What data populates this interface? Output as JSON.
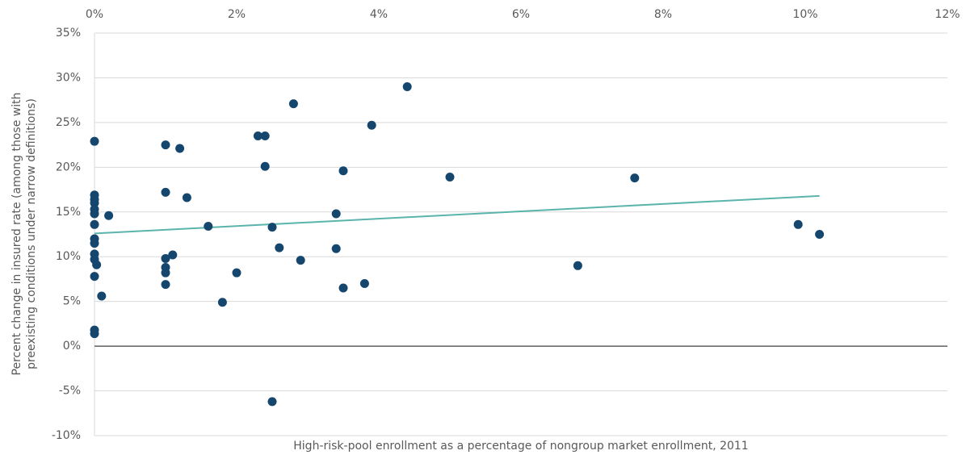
{
  "chart_data": {
    "type": "scatter",
    "xlabel": "High-risk-pool enrollment as a percentage of nongroup market enrollment, 2011",
    "ylabel": [
      "Percent change in insured rate (among those with",
      "preexisting conditions under narrow definitions)"
    ],
    "xlim": [
      0,
      12
    ],
    "xticks": [
      {
        "value": 0,
        "label": "0%"
      },
      {
        "value": 2,
        "label": "2%"
      },
      {
        "value": 4,
        "label": "4%"
      },
      {
        "value": 6,
        "label": "6%"
      },
      {
        "value": 8,
        "label": "8%"
      },
      {
        "value": 10,
        "label": "10%"
      },
      {
        "value": 12,
        "label": "12%"
      }
    ],
    "ylim": [
      -10,
      35
    ],
    "yticks": [
      {
        "value": -10,
        "label": "-10%"
      },
      {
        "value": -5,
        "label": "-5%"
      },
      {
        "value": 0,
        "label": "0%"
      },
      {
        "value": 5,
        "label": "5%"
      },
      {
        "value": 10,
        "label": "10%"
      },
      {
        "value": 15,
        "label": "15%"
      },
      {
        "value": 20,
        "label": "20%"
      },
      {
        "value": 25,
        "label": "25%"
      },
      {
        "value": 30,
        "label": "30%"
      },
      {
        "value": 35,
        "label": "35%"
      }
    ],
    "grid": true,
    "color": "#14466e",
    "x": [
      0,
      0,
      0,
      0,
      0,
      0,
      0,
      0,
      0,
      0,
      0,
      0.03,
      0,
      0.1,
      0,
      0,
      0.2,
      1.0,
      1.2,
      1.0,
      1.3,
      1.1,
      1.0,
      1.0,
      1.0,
      1.0,
      1.6,
      2.0,
      1.8,
      2.3,
      2.4,
      2.4,
      2.8,
      2.5,
      2.6,
      2.9,
      2.5,
      3.4,
      3.5,
      3.4,
      3.5,
      3.8,
      3.9,
      4.4,
      5.0,
      6.8,
      7.6,
      9.9,
      10.2
    ],
    "values": [
      22.9,
      16.9,
      16.4,
      16.0,
      15.3,
      14.8,
      13.6,
      12.0,
      11.5,
      10.3,
      9.7,
      9.1,
      7.8,
      5.6,
      1.8,
      1.4,
      14.6,
      22.5,
      22.1,
      17.2,
      16.6,
      10.2,
      9.8,
      8.8,
      8.2,
      6.9,
      13.4,
      8.2,
      4.9,
      23.5,
      23.5,
      20.1,
      27.1,
      13.3,
      11.0,
      9.6,
      -6.2,
      14.8,
      19.6,
      10.9,
      6.5,
      7.0,
      24.7,
      29.0,
      18.9,
      9.0,
      18.8,
      13.6,
      12.5
    ],
    "trendline": {
      "x": [
        0,
        10.2
      ],
      "values": [
        12.6,
        16.8
      ],
      "color": "#5ab4ac"
    }
  }
}
